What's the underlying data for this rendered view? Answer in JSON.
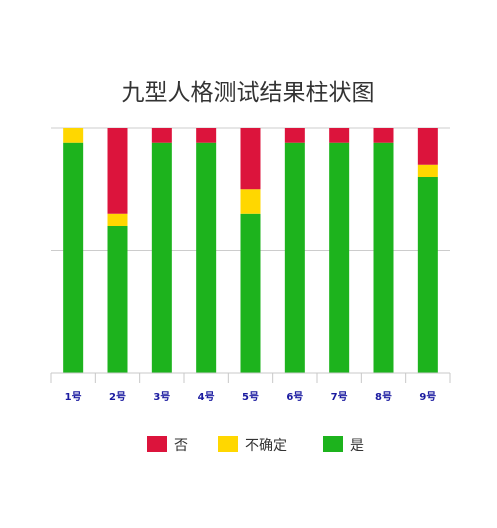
{
  "chart_data": {
    "type": "bar",
    "stacked": true,
    "title": "九型人格测试结果柱状图",
    "categories": [
      "1号",
      "2号",
      "3号",
      "4号",
      "5号",
      "6号",
      "7号",
      "8号",
      "9号"
    ],
    "series": [
      {
        "name": "是",
        "color": "#1DB31D",
        "values": [
          94,
          60,
          94,
          94,
          65,
          94,
          94,
          94,
          80
        ]
      },
      {
        "name": "不确定",
        "color": "#FFD700",
        "values": [
          6,
          5,
          0,
          0,
          10,
          0,
          0,
          0,
          5
        ]
      },
      {
        "name": "否",
        "color": "#DC143C",
        "values": [
          0,
          35,
          6,
          6,
          25,
          6,
          6,
          6,
          15
        ]
      }
    ],
    "legend_order": [
      "否",
      "不确定",
      "是"
    ],
    "ylim": [
      0,
      100
    ],
    "grid": true,
    "legend_position": "bottom",
    "tick_label_color": "#1a1aa0"
  }
}
